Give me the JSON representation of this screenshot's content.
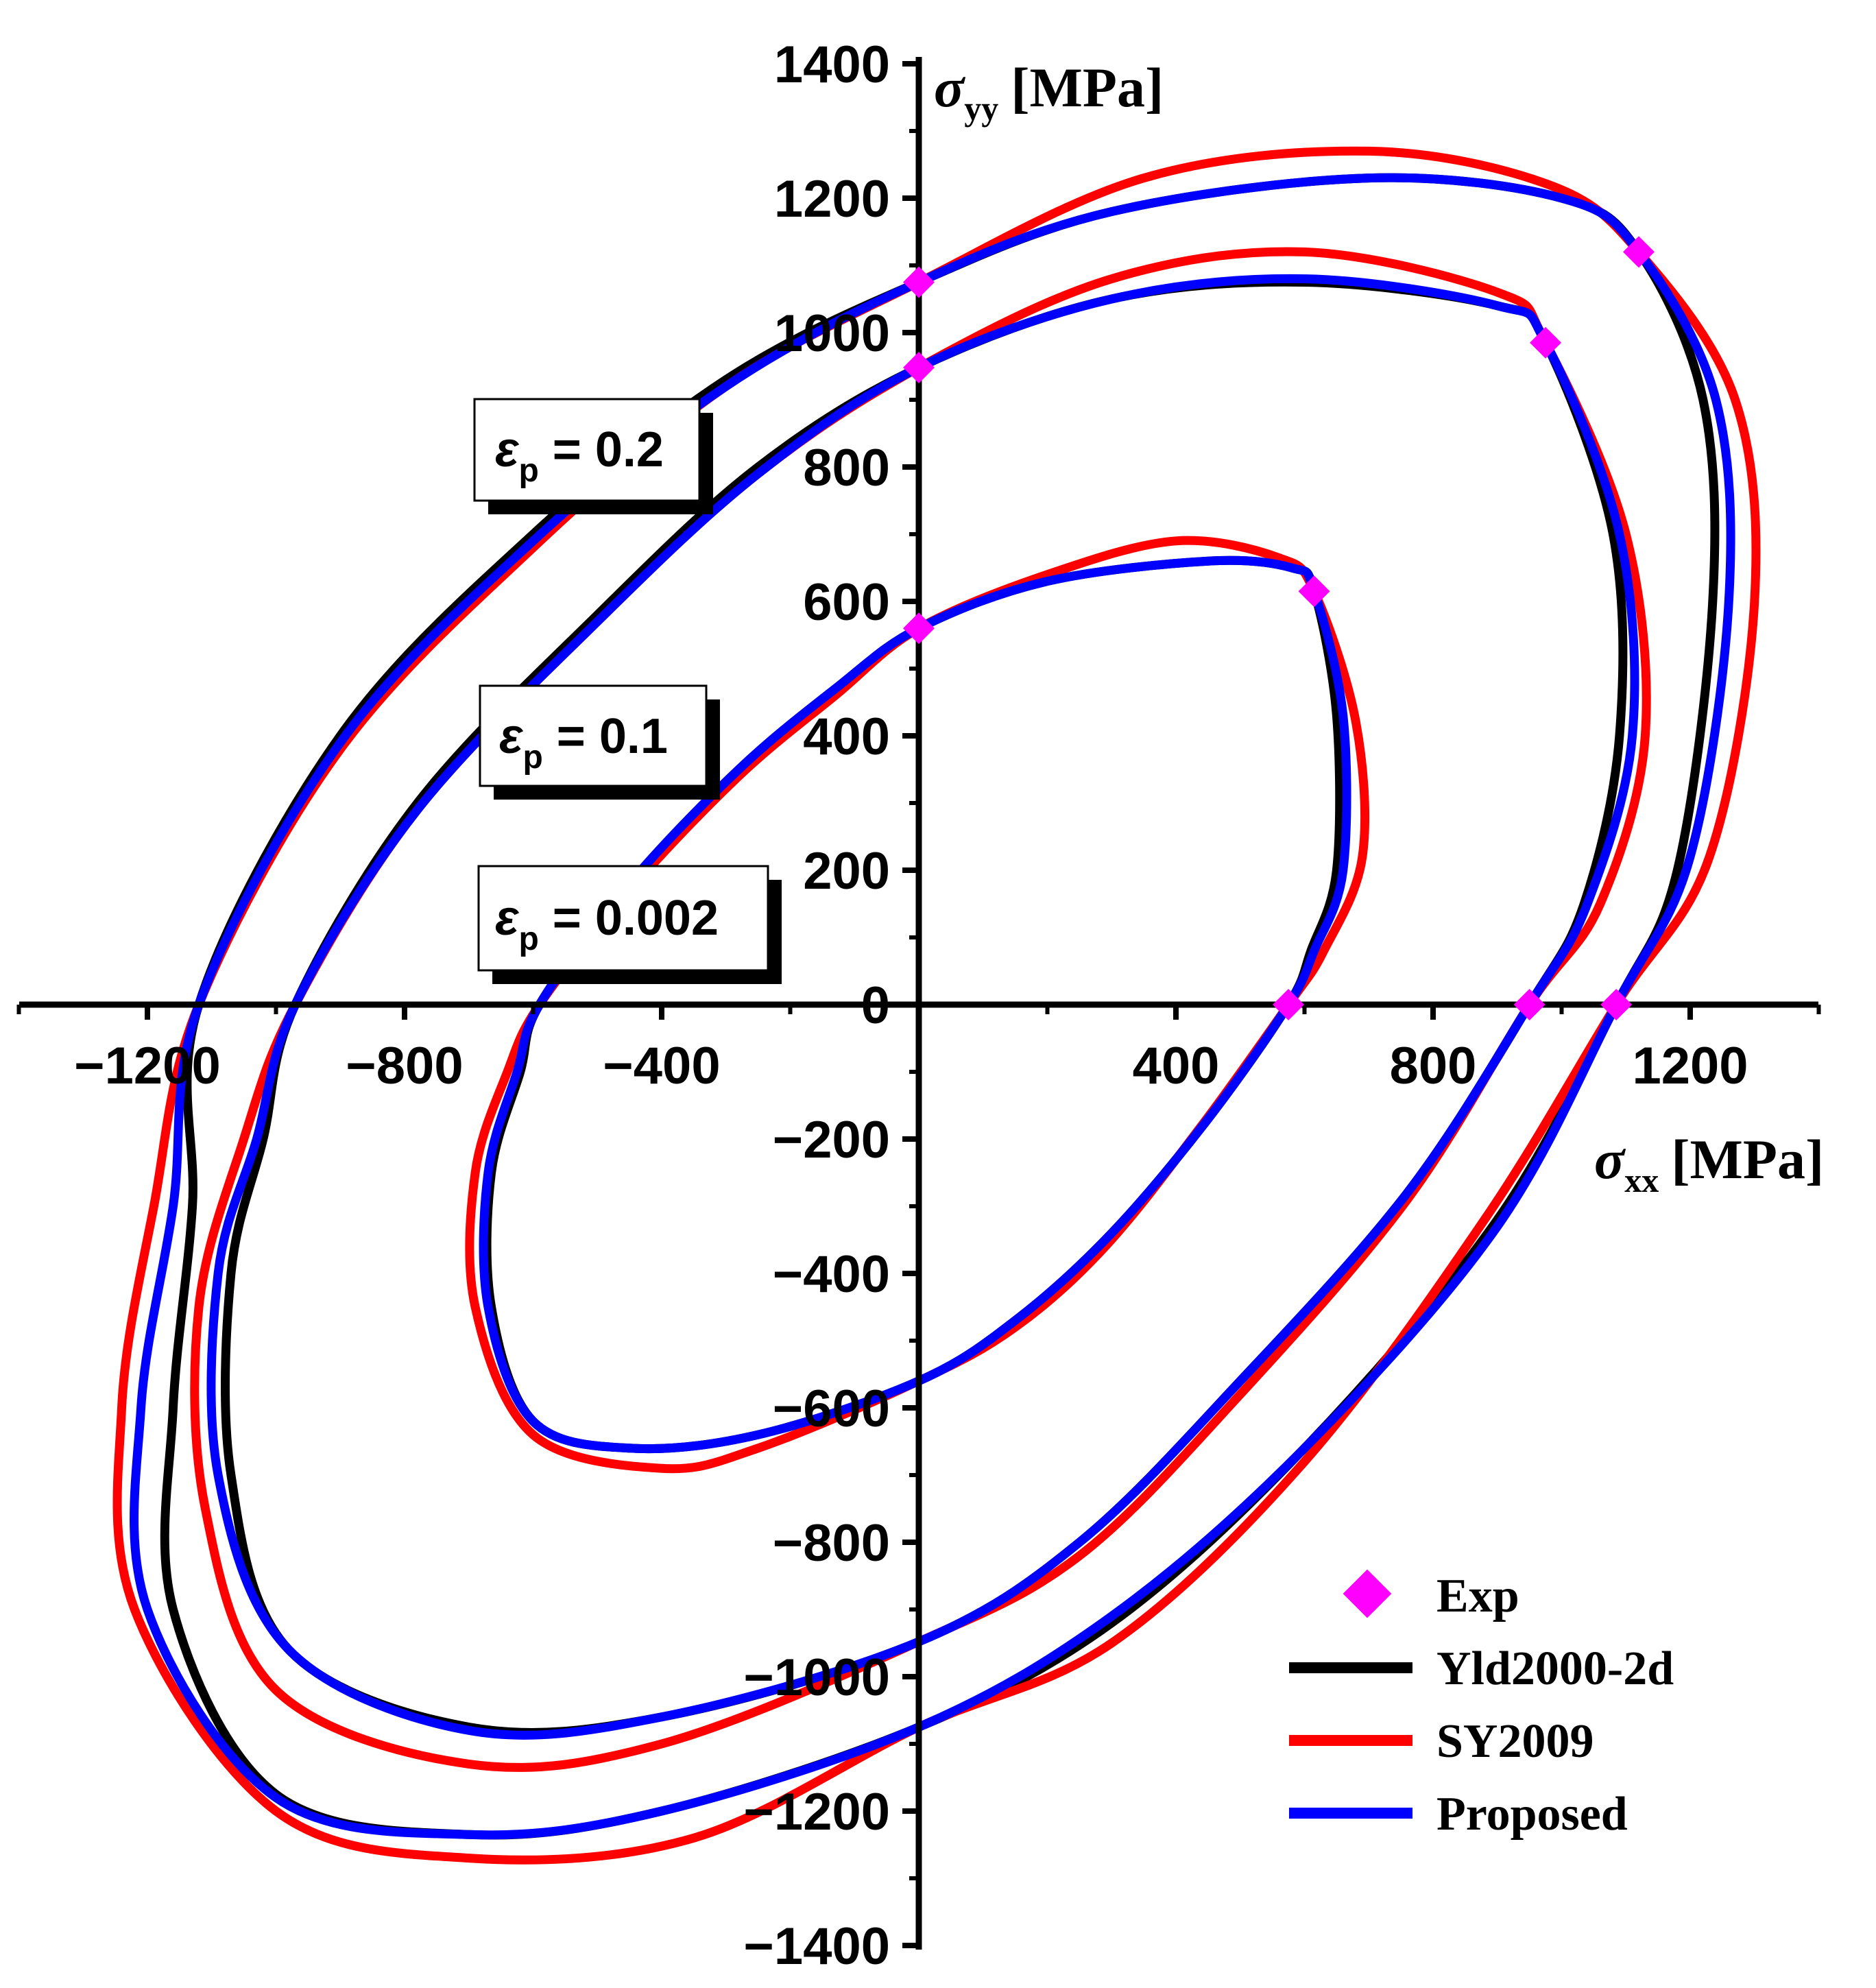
{
  "chart_data": {
    "type": "line",
    "xlabel": {
      "symbol": "σ",
      "subscript": "xx",
      "unit": "[MPa]"
    },
    "ylabel": {
      "symbol": "σ",
      "subscript": "yy",
      "unit": "[MPa]"
    },
    "xlim": [
      -1400,
      1400
    ],
    "ylim": [
      -1400,
      1400
    ],
    "x_ticks": [
      "−1200",
      "−800",
      "−400",
      "400",
      "800",
      "1200"
    ],
    "x_tick_values": [
      -1200,
      -800,
      -400,
      400,
      800,
      1200
    ],
    "y_ticks": [
      "1400",
      "1200",
      "1000",
      "800",
      "600",
      "400",
      "200",
      "0",
      "−200",
      "−400",
      "−600",
      "−800",
      "−1000",
      "−1200",
      "−1400"
    ],
    "y_tick_values": [
      1400,
      1200,
      1000,
      800,
      600,
      400,
      200,
      0,
      -200,
      -400,
      -600,
      -800,
      -1000,
      -1200,
      -1400
    ],
    "legend_placement": "bottom-right",
    "annotations": [
      {
        "symbol": "ε",
        "subscript": "p",
        "text": " = 0.2"
      },
      {
        "symbol": "ε",
        "subscript": "p",
        "text": " = 0.1"
      },
      {
        "symbol": "ε",
        "subscript": "p",
        "text": " = 0.002"
      }
    ],
    "series": [
      {
        "name": "Exp",
        "kind": "marker",
        "color": "#ff00ff",
        "points": [
          [
            0,
            1075
          ],
          [
            1120,
            1120
          ],
          [
            1085,
            0
          ],
          [
            0,
            948
          ],
          [
            975,
            985
          ],
          [
            950,
            0
          ],
          [
            0,
            560
          ],
          [
            615,
            615
          ],
          [
            575,
            0
          ]
        ]
      },
      {
        "name": "Yld2000-2d",
        "kind": "line",
        "color": "#000000",
        "curves": [
          [
            [
              0,
              1075
            ],
            [
              300,
              1180
            ],
            [
              700,
              1230
            ],
            [
              1000,
              1200
            ],
            [
              1120,
              1120
            ],
            [
              1220,
              900
            ],
            [
              1235,
              600
            ],
            [
              1180,
              200
            ],
            [
              1085,
              0
            ],
            [
              900,
              -320
            ],
            [
              600,
              -660
            ],
            [
              300,
              -920
            ],
            [
              0,
              -1075
            ],
            [
              -400,
              -1200
            ],
            [
              -700,
              -1235
            ],
            [
              -1000,
              -1175
            ],
            [
              -1160,
              -900
            ],
            [
              -1160,
              -600
            ],
            [
              -1130,
              -300
            ],
            [
              -1120,
              0
            ],
            [
              -900,
              400
            ],
            [
              -600,
              700
            ],
            [
              -300,
              930
            ],
            [
              0,
              1075
            ]
          ],
          [
            [
              0,
              948
            ],
            [
              300,
              1050
            ],
            [
              600,
              1075
            ],
            [
              900,
              1040
            ],
            [
              975,
              985
            ],
            [
              1080,
              700
            ],
            [
              1090,
              400
            ],
            [
              1035,
              150
            ],
            [
              950,
              0
            ],
            [
              760,
              -280
            ],
            [
              500,
              -560
            ],
            [
              250,
              -800
            ],
            [
              0,
              -948
            ],
            [
              -400,
              -1060
            ],
            [
              -700,
              -1075
            ],
            [
              -980,
              -960
            ],
            [
              -1070,
              -700
            ],
            [
              -1070,
              -400
            ],
            [
              -1020,
              -200
            ],
            [
              -970,
              0
            ],
            [
              -780,
              300
            ],
            [
              -500,
              580
            ],
            [
              -250,
              800
            ],
            [
              0,
              948
            ]
          ],
          [
            [
              0,
              560
            ],
            [
              200,
              630
            ],
            [
              450,
              660
            ],
            [
              580,
              650
            ],
            [
              615,
              615
            ],
            [
              650,
              430
            ],
            [
              650,
              200
            ],
            [
              610,
              80
            ],
            [
              575,
              0
            ],
            [
              450,
              -170
            ],
            [
              300,
              -340
            ],
            [
              150,
              -470
            ],
            [
              0,
              -560
            ],
            [
              -250,
              -640
            ],
            [
              -450,
              -660
            ],
            [
              -600,
              -620
            ],
            [
              -665,
              -450
            ],
            [
              -665,
              -250
            ],
            [
              -620,
              -100
            ],
            [
              -590,
              0
            ],
            [
              -450,
              180
            ],
            [
              -280,
              350
            ],
            [
              -130,
              470
            ],
            [
              0,
              560
            ]
          ]
        ]
      },
      {
        "name": "SY2009",
        "kind": "line",
        "color": "#ff0000",
        "curves": [
          [
            [
              0,
              1075
            ],
            [
              350,
              1230
            ],
            [
              700,
              1270
            ],
            [
              980,
              1220
            ],
            [
              1120,
              1120
            ],
            [
              1270,
              900
            ],
            [
              1300,
              600
            ],
            [
              1230,
              220
            ],
            [
              1085,
              0
            ],
            [
              880,
              -320
            ],
            [
              600,
              -680
            ],
            [
              300,
              -950
            ],
            [
              0,
              -1075
            ],
            [
              -350,
              -1240
            ],
            [
              -700,
              -1270
            ],
            [
              -1000,
              -1200
            ],
            [
              -1220,
              -900
            ],
            [
              -1240,
              -600
            ],
            [
              -1190,
              -300
            ],
            [
              -1120,
              0
            ],
            [
              -900,
              380
            ],
            [
              -600,
              680
            ],
            [
              -300,
              920
            ],
            [
              0,
              1075
            ]
          ],
          [
            [
              0,
              948
            ],
            [
              300,
              1080
            ],
            [
              600,
              1120
            ],
            [
              900,
              1060
            ],
            [
              975,
              985
            ],
            [
              1100,
              700
            ],
            [
              1130,
              400
            ],
            [
              1060,
              150
            ],
            [
              950,
              0
            ],
            [
              760,
              -290
            ],
            [
              500,
              -580
            ],
            [
              250,
              -820
            ],
            [
              0,
              -948
            ],
            [
              -400,
              -1100
            ],
            [
              -700,
              -1130
            ],
            [
              -1000,
              -1020
            ],
            [
              -1110,
              -750
            ],
            [
              -1120,
              -450
            ],
            [
              -1050,
              -200
            ],
            [
              -970,
              0
            ],
            [
              -780,
              290
            ],
            [
              -500,
              570
            ],
            [
              -250,
              790
            ],
            [
              0,
              948
            ]
          ],
          [
            [
              0,
              560
            ],
            [
              200,
              640
            ],
            [
              400,
              690
            ],
            [
              560,
              665
            ],
            [
              615,
              615
            ],
            [
              680,
              420
            ],
            [
              690,
              220
            ],
            [
              630,
              80
            ],
            [
              575,
              0
            ],
            [
              440,
              -180
            ],
            [
              290,
              -360
            ],
            [
              150,
              -480
            ],
            [
              0,
              -560
            ],
            [
              -250,
              -660
            ],
            [
              -400,
              -690
            ],
            [
              -600,
              -640
            ],
            [
              -690,
              -450
            ],
            [
              -690,
              -250
            ],
            [
              -640,
              -100
            ],
            [
              -590,
              0
            ],
            [
              -450,
              170
            ],
            [
              -280,
              340
            ],
            [
              -130,
              460
            ],
            [
              0,
              560
            ]
          ]
        ]
      },
      {
        "name": "Proposed",
        "kind": "line",
        "color": "#0000ff",
        "curves": [
          [
            [
              0,
              1075
            ],
            [
              300,
              1180
            ],
            [
              700,
              1230
            ],
            [
              1000,
              1200
            ],
            [
              1120,
              1120
            ],
            [
              1240,
              900
            ],
            [
              1260,
              600
            ],
            [
              1200,
              220
            ],
            [
              1085,
              0
            ],
            [
              900,
              -330
            ],
            [
              600,
              -660
            ],
            [
              300,
              -910
            ],
            [
              0,
              -1075
            ],
            [
              -400,
              -1200
            ],
            [
              -700,
              -1235
            ],
            [
              -1000,
              -1180
            ],
            [
              -1200,
              -900
            ],
            [
              -1210,
              -600
            ],
            [
              -1160,
              -300
            ],
            [
              -1120,
              0
            ],
            [
              -900,
              390
            ],
            [
              -600,
              690
            ],
            [
              -300,
              920
            ],
            [
              0,
              1075
            ]
          ],
          [
            [
              0,
              948
            ],
            [
              300,
              1050
            ],
            [
              600,
              1080
            ],
            [
              900,
              1040
            ],
            [
              975,
              985
            ],
            [
              1090,
              700
            ],
            [
              1110,
              400
            ],
            [
              1040,
              150
            ],
            [
              950,
              0
            ],
            [
              760,
              -280
            ],
            [
              500,
              -560
            ],
            [
              250,
              -800
            ],
            [
              0,
              -948
            ],
            [
              -400,
              -1060
            ],
            [
              -700,
              -1080
            ],
            [
              -980,
              -960
            ],
            [
              -1090,
              -700
            ],
            [
              -1090,
              -400
            ],
            [
              -1030,
              -200
            ],
            [
              -970,
              0
            ],
            [
              -780,
              290
            ],
            [
              -500,
              570
            ],
            [
              -250,
              790
            ],
            [
              0,
              948
            ]
          ],
          [
            [
              0,
              560
            ],
            [
              200,
              630
            ],
            [
              450,
              660
            ],
            [
              580,
              650
            ],
            [
              615,
              615
            ],
            [
              660,
              430
            ],
            [
              660,
              200
            ],
            [
              615,
              80
            ],
            [
              575,
              0
            ],
            [
              450,
              -170
            ],
            [
              300,
              -340
            ],
            [
              150,
              -470
            ],
            [
              0,
              -560
            ],
            [
              -250,
              -640
            ],
            [
              -450,
              -660
            ],
            [
              -600,
              -620
            ],
            [
              -670,
              -450
            ],
            [
              -670,
              -250
            ],
            [
              -625,
              -100
            ],
            [
              -590,
              0
            ],
            [
              -450,
              180
            ],
            [
              -280,
              350
            ],
            [
              -130,
              470
            ],
            [
              0,
              560
            ]
          ]
        ]
      }
    ]
  }
}
